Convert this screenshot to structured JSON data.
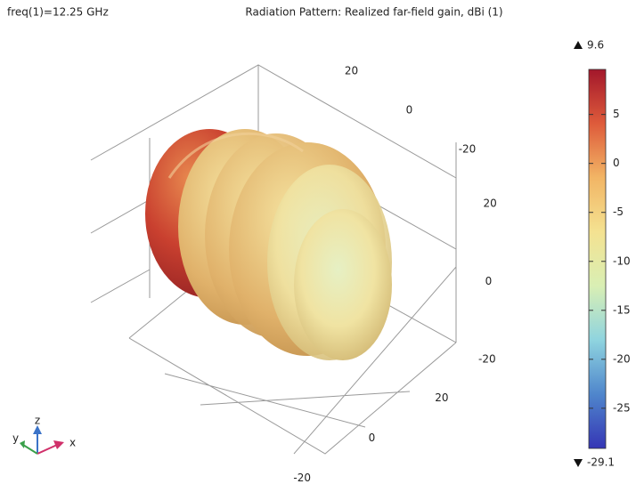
{
  "chart_data": {
    "type": "radiation-pattern-3d",
    "title": "Radiation Pattern: Realized far-field gain, dBi (1)",
    "parameter": "freq(1)=12.25 GHz",
    "axis_names": [
      "x",
      "y",
      "z"
    ],
    "xticks": [
      20,
      0,
      -20
    ],
    "xlim": [
      -30,
      30
    ],
    "yticks": [
      20,
      0,
      -20
    ],
    "ylim": [
      -30,
      30
    ],
    "zticks": [
      20,
      0,
      -20
    ],
    "zlim": [
      -30,
      30
    ],
    "colorbar": {
      "max": 9.6,
      "min": -29.1,
      "ticks": [
        5,
        0,
        -5,
        -10,
        -15,
        -20,
        -25
      ],
      "colors": [
        "#3535b5",
        "#4f86cc",
        "#8fd4df",
        "#d9efb4",
        "#f4e291",
        "#f2b565",
        "#de5b3b",
        "#a3172b"
      ]
    }
  }
}
